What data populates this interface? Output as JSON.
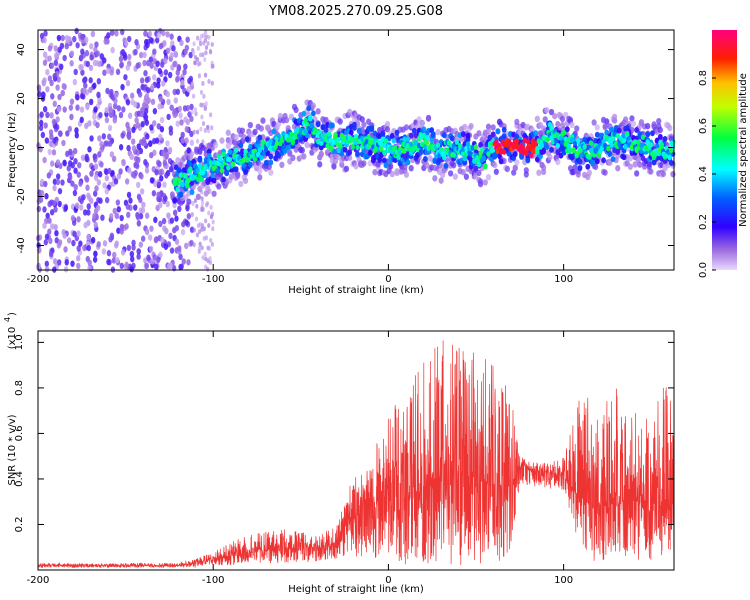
{
  "title": "YM08.2025.270.09.25.G08",
  "chart_data": [
    {
      "type": "heatmap",
      "xlabel": "Height of straight line (km)",
      "ylabel": "Frequency (Hz)",
      "xlim": [
        -200,
        163
      ],
      "ylim": [
        -50,
        48
      ],
      "xticks": [
        -200,
        -100,
        0,
        100
      ],
      "xtick_labels": [
        "-200",
        "-100",
        "0",
        "100"
      ],
      "yticks": [
        -40,
        -20,
        0,
        20,
        40
      ],
      "ytick_labels": [
        "-40",
        "-20",
        "0",
        "20",
        "40"
      ],
      "colorbar": {
        "label": "Normalized spectral amplitude",
        "range": [
          0,
          1
        ],
        "ticks": [
          0,
          0.2,
          0.4,
          0.6,
          0.8
        ],
        "tick_labels": [
          "0.0",
          "0.2",
          "0.4",
          "0.6",
          "0.8"
        ],
        "colors": [
          "#e8d8ff",
          "#8a2be2",
          "#0000ff",
          "#00ffff",
          "#00ff00",
          "#ffff00",
          "#ff8000",
          "#ff0000",
          "#ff00ff"
        ]
      },
      "ridge_center": {
        "x": [
          -120,
          -110,
          -100,
          -90,
          -80,
          -70,
          -60,
          -50,
          -45,
          -40,
          -30,
          -20,
          -10,
          0,
          10,
          20,
          30,
          40,
          50,
          55,
          60,
          70,
          80,
          88,
          92,
          100,
          110,
          120,
          130,
          140,
          150,
          160
        ],
        "hz": [
          -15,
          -10,
          -8,
          -5,
          -3,
          0,
          3,
          6,
          10,
          5,
          2,
          3,
          2,
          -1,
          0,
          2,
          -2,
          0,
          -3,
          -5,
          1,
          0,
          0,
          1,
          6,
          3,
          -2,
          0,
          3,
          2,
          0,
          -1
        ]
      },
      "ridge_peak_region": {
        "x": [
          60,
          85
        ],
        "hz": 0,
        "level": 1.0
      }
    },
    {
      "type": "line",
      "xlabel": "Height of straight line (km)",
      "ylabel": "SNR (10 * v/v)",
      "scale_label": "(x10",
      "scale_exp": "4",
      "xlim": [
        -200,
        163
      ],
      "ylim": [
        0,
        1.05
      ],
      "xticks": [
        -200,
        -100,
        0,
        100
      ],
      "xtick_labels": [
        "-200",
        "-100",
        "0",
        "100"
      ],
      "yticks": [
        0.2,
        0.4,
        0.6,
        0.8,
        1.0
      ],
      "ytick_labels": [
        "0.2",
        "0.4",
        "0.6",
        "0.8",
        "1.0"
      ],
      "color": "#ee3333",
      "series": [
        {
          "x": [
            -200,
            -150,
            -120,
            -110,
            -100,
            -90,
            -80,
            -70,
            -60,
            -50,
            -40,
            -30,
            -25,
            -20,
            -10,
            0,
            10,
            20,
            30,
            40,
            50,
            60,
            70,
            75,
            80,
            90,
            100,
            110,
            120,
            130,
            140,
            150,
            160,
            163
          ],
          "base": [
            0.02,
            0.02,
            0.02,
            0.03,
            0.05,
            0.06,
            0.08,
            0.09,
            0.09,
            0.1,
            0.1,
            0.11,
            0.2,
            0.25,
            0.27,
            0.3,
            0.32,
            0.35,
            0.4,
            0.42,
            0.4,
            0.38,
            0.36,
            0.45,
            0.44,
            0.43,
            0.42,
            0.3,
            0.3,
            0.3,
            0.3,
            0.3,
            0.28,
            0.28
          ],
          "upper": [
            0.03,
            0.03,
            0.03,
            0.05,
            0.08,
            0.12,
            0.16,
            0.17,
            0.18,
            0.17,
            0.15,
            0.2,
            0.33,
            0.4,
            0.5,
            0.68,
            0.8,
            0.92,
            1.02,
            1.0,
            0.98,
            0.9,
            0.78,
            0.5,
            0.48,
            0.47,
            0.5,
            0.78,
            0.72,
            0.8,
            0.7,
            0.72,
            0.86,
            0.6
          ],
          "lower": [
            0.01,
            0.01,
            0.01,
            0.01,
            0.02,
            0.02,
            0.03,
            0.03,
            0.03,
            0.03,
            0.03,
            0.04,
            0.06,
            0.06,
            0.05,
            0.03,
            0.02,
            0.03,
            0.02,
            0.02,
            0.02,
            0.03,
            0.05,
            0.38,
            0.37,
            0.36,
            0.35,
            0.04,
            0.04,
            0.04,
            0.04,
            0.04,
            0.03,
            0.03
          ]
        }
      ]
    }
  ]
}
